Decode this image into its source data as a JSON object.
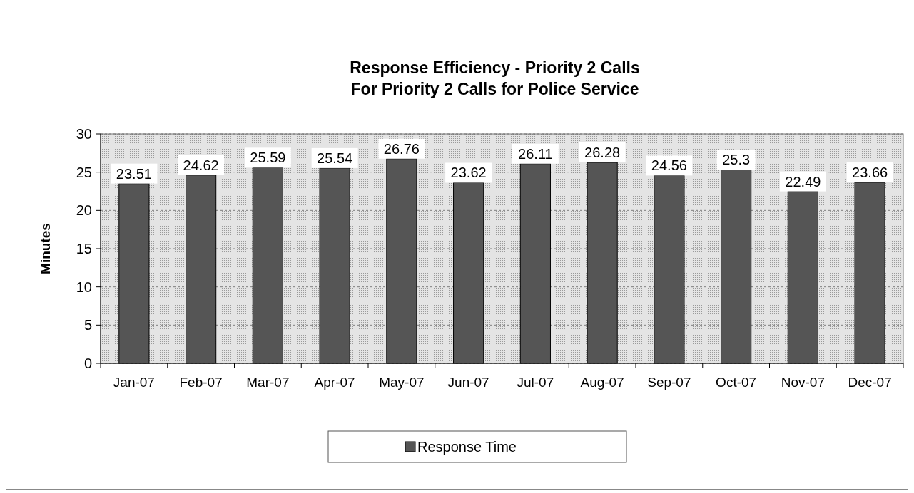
{
  "chart_data": {
    "type": "bar",
    "title": "Response Efficiency - Priority 2 Calls\nFor Priority 2 Calls for Police Service",
    "ylabel": "Minutes",
    "categories": [
      "Jan-07",
      "Feb-07",
      "Mar-07",
      "Apr-07",
      "May-07",
      "Jun-07",
      "Jul-07",
      "Aug-07",
      "Sep-07",
      "Oct-07",
      "Nov-07",
      "Dec-07"
    ],
    "series": [
      {
        "name": "Response Time",
        "color": "#555555",
        "values": [
          23.51,
          24.62,
          25.59,
          25.54,
          26.76,
          23.62,
          26.11,
          26.28,
          24.56,
          25.3,
          22.49,
          23.66
        ]
      }
    ],
    "ylim": [
      0,
      30
    ],
    "yticks": [
      0,
      5,
      10,
      15,
      20,
      25,
      30
    ],
    "grid": "y",
    "legend": "bottom",
    "data_labels": true
  }
}
